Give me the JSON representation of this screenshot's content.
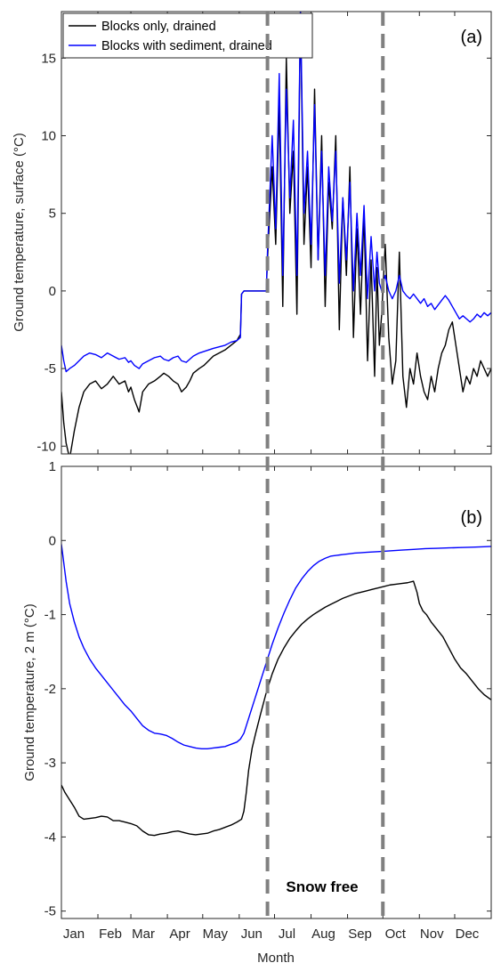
{
  "chart_data": [
    {
      "type": "line",
      "panel_label": "(a)",
      "ylabel": "Ground temperature, surface (°C)",
      "ylim": [
        -10.5,
        18
      ],
      "yticks": [
        -10,
        -5,
        0,
        5,
        10,
        15
      ],
      "xlim": [
        1,
        366
      ],
      "legend": {
        "placement": "top-left",
        "entries": [
          "Blocks only, drained",
          "Blocks with sediment, drained"
        ]
      },
      "series": [
        {
          "name": "Blocks only, drained",
          "color": "#000000",
          "x": [
            1,
            3,
            5,
            8,
            12,
            16,
            20,
            25,
            30,
            35,
            40,
            45,
            50,
            55,
            58,
            60,
            63,
            67,
            70,
            75,
            80,
            85,
            88,
            92,
            96,
            100,
            103,
            107,
            110,
            113,
            118,
            122,
            126,
            130,
            135,
            140,
            145,
            150,
            153,
            154,
            156,
            165,
            175,
            176,
            180,
            183,
            186,
            189,
            192,
            195,
            198,
            201,
            204,
            207,
            210,
            213,
            216,
            219,
            222,
            225,
            228,
            231,
            234,
            237,
            240,
            243,
            246,
            249,
            252,
            255,
            258,
            261,
            264,
            267,
            269,
            271,
            273,
            276,
            279,
            282,
            285,
            288,
            291,
            294,
            297,
            300,
            303,
            306,
            309,
            312,
            315,
            318,
            321,
            324,
            327,
            330,
            333,
            336,
            339,
            342,
            345,
            348,
            351,
            354,
            357,
            360,
            363,
            366
          ],
          "y": [
            -6.5,
            -8.5,
            -9.8,
            -10.8,
            -9.0,
            -7.5,
            -6.5,
            -6.0,
            -5.8,
            -6.3,
            -6.0,
            -5.5,
            -6.0,
            -5.8,
            -6.5,
            -6.2,
            -7.0,
            -7.8,
            -6.5,
            -6.0,
            -5.8,
            -5.5,
            -5.3,
            -5.5,
            -5.8,
            -6.0,
            -6.5,
            -6.2,
            -5.8,
            -5.3,
            -5.0,
            -4.8,
            -4.5,
            -4.2,
            -4.0,
            -3.8,
            -3.5,
            -3.2,
            -2.8,
            -0.2,
            0.0,
            0.0,
            0.0,
            2.0,
            8.0,
            3.0,
            12.0,
            -1.0,
            15.0,
            5.0,
            9.0,
            -1.5,
            18.0,
            3.0,
            8.0,
            1.5,
            13.0,
            2.0,
            10.0,
            -1.0,
            7.0,
            4.0,
            10.0,
            -2.5,
            6.0,
            1.0,
            8.0,
            -3.0,
            4.0,
            -1.5,
            5.0,
            -4.5,
            2.0,
            -5.5,
            1.5,
            -3.5,
            -1.5,
            3.0,
            -3.0,
            -6.0,
            -4.5,
            2.5,
            -5.5,
            -7.5,
            -5.0,
            -6.0,
            -4.0,
            -5.5,
            -6.5,
            -7.0,
            -5.5,
            -6.5,
            -5.0,
            -4.0,
            -3.5,
            -2.5,
            -2.0,
            -3.5,
            -5.0,
            -6.5,
            -5.5,
            -6.0,
            -5.0,
            -5.5,
            -4.5,
            -5.0,
            -5.5,
            -5.0
          ]
        },
        {
          "name": "Blocks with sediment, drained",
          "color": "#0000FF",
          "x": [
            1,
            3,
            5,
            8,
            12,
            16,
            20,
            25,
            30,
            35,
            40,
            45,
            50,
            55,
            58,
            60,
            63,
            67,
            70,
            75,
            80,
            85,
            88,
            92,
            96,
            100,
            103,
            107,
            110,
            113,
            118,
            122,
            126,
            130,
            135,
            140,
            145,
            150,
            153,
            154,
            156,
            165,
            175,
            176,
            180,
            183,
            186,
            189,
            192,
            195,
            198,
            201,
            204,
            207,
            210,
            213,
            216,
            219,
            222,
            225,
            228,
            231,
            234,
            237,
            240,
            243,
            246,
            249,
            252,
            255,
            258,
            261,
            264,
            267,
            269,
            271,
            273,
            276,
            279,
            282,
            285,
            288,
            291,
            294,
            297,
            300,
            303,
            306,
            309,
            312,
            315,
            318,
            321,
            324,
            327,
            330,
            333,
            336,
            339,
            342,
            345,
            348,
            351,
            354,
            357,
            360,
            363,
            366
          ],
          "y": [
            -3.5,
            -4.5,
            -5.2,
            -5.0,
            -4.8,
            -4.5,
            -4.2,
            -4.0,
            -4.1,
            -4.3,
            -4.0,
            -4.2,
            -4.4,
            -4.3,
            -4.6,
            -4.5,
            -4.8,
            -5.0,
            -4.7,
            -4.5,
            -4.3,
            -4.2,
            -4.4,
            -4.5,
            -4.3,
            -4.2,
            -4.5,
            -4.6,
            -4.4,
            -4.2,
            -4.0,
            -3.9,
            -3.8,
            -3.7,
            -3.6,
            -3.5,
            -3.3,
            -3.2,
            -3.0,
            -0.2,
            0.0,
            0.0,
            0.0,
            2.5,
            10.0,
            4.0,
            14.0,
            1.0,
            13.0,
            6.0,
            11.0,
            1.0,
            18.0,
            5.0,
            9.0,
            3.0,
            12.0,
            2.0,
            9.0,
            1.0,
            8.0,
            4.5,
            9.0,
            0.5,
            6.0,
            2.0,
            7.0,
            0.0,
            5.0,
            1.0,
            5.5,
            -0.5,
            3.5,
            0.0,
            2.5,
            0.5,
            0.0,
            1.0,
            0.0,
            -0.5,
            0.0,
            1.0,
            0.0,
            -0.3,
            -0.5,
            -0.2,
            -0.5,
            -0.8,
            -0.5,
            -1.0,
            -0.8,
            -1.2,
            -0.9,
            -0.6,
            -0.3,
            -0.6,
            -1.0,
            -1.4,
            -1.8,
            -1.6,
            -1.8,
            -2.0,
            -1.8,
            -1.5,
            -1.7,
            -1.4,
            -1.6,
            -1.4
          ]
        }
      ],
      "vlines": [
        {
          "x": 176,
          "style": "dashed",
          "color": "#808080"
        },
        {
          "x": 274,
          "style": "dashed",
          "color": "#808080"
        }
      ]
    },
    {
      "type": "line",
      "panel_label": "(b)",
      "ylabel": "Ground temperature, 2 m (°C)",
      "xlabel": "Month",
      "ylim": [
        -5.1,
        1
      ],
      "yticks": [
        -5,
        -4,
        -3,
        -2,
        -1,
        0,
        1
      ],
      "xlim": [
        1,
        366
      ],
      "xticks": [
        {
          "x": 1,
          "label": "Jan"
        },
        {
          "x": 32,
          "label": "Feb"
        },
        {
          "x": 60,
          "label": "Mar"
        },
        {
          "x": 91,
          "label": "Apr"
        },
        {
          "x": 121,
          "label": "May"
        },
        {
          "x": 152,
          "label": "Jun"
        },
        {
          "x": 182,
          "label": "Jul"
        },
        {
          "x": 213,
          "label": "Aug"
        },
        {
          "x": 244,
          "label": "Sep"
        },
        {
          "x": 274,
          "label": "Oct"
        },
        {
          "x": 305,
          "label": "Nov"
        },
        {
          "x": 335,
          "label": "Dec"
        }
      ],
      "annotation": "Snow free",
      "series": [
        {
          "name": "Blocks only, drained",
          "color": "#000000",
          "x": [
            1,
            4,
            8,
            12,
            16,
            20,
            25,
            30,
            35,
            40,
            45,
            50,
            55,
            60,
            65,
            70,
            75,
            80,
            85,
            90,
            95,
            100,
            105,
            110,
            115,
            120,
            125,
            130,
            135,
            140,
            145,
            150,
            154,
            156,
            158,
            160,
            163,
            166,
            170,
            175,
            180,
            185,
            190,
            195,
            200,
            205,
            210,
            215,
            220,
            225,
            230,
            235,
            240,
            245,
            250,
            255,
            260,
            265,
            270,
            275,
            280,
            285,
            290,
            295,
            300,
            303,
            305,
            308,
            311,
            315,
            320,
            325,
            330,
            335,
            340,
            345,
            350,
            355,
            360,
            366
          ],
          "y": [
            -3.3,
            -3.4,
            -3.5,
            -3.6,
            -3.72,
            -3.76,
            -3.75,
            -3.74,
            -3.72,
            -3.73,
            -3.78,
            -3.78,
            -3.8,
            -3.82,
            -3.85,
            -3.92,
            -3.97,
            -3.98,
            -3.96,
            -3.95,
            -3.93,
            -3.92,
            -3.94,
            -3.96,
            -3.97,
            -3.96,
            -3.95,
            -3.92,
            -3.9,
            -3.87,
            -3.84,
            -3.8,
            -3.76,
            -3.65,
            -3.4,
            -3.1,
            -2.8,
            -2.6,
            -2.35,
            -2.05,
            -1.8,
            -1.6,
            -1.45,
            -1.32,
            -1.22,
            -1.13,
            -1.06,
            -1.0,
            -0.95,
            -0.9,
            -0.86,
            -0.82,
            -0.78,
            -0.75,
            -0.72,
            -0.7,
            -0.68,
            -0.66,
            -0.64,
            -0.62,
            -0.6,
            -0.59,
            -0.58,
            -0.57,
            -0.55,
            -0.7,
            -0.85,
            -0.95,
            -1.0,
            -1.1,
            -1.2,
            -1.3,
            -1.45,
            -1.6,
            -1.72,
            -1.8,
            -1.9,
            -2.0,
            -2.08,
            -2.15
          ]
        },
        {
          "name": "Blocks with sediment, drained",
          "color": "#0000FF",
          "x": [
            1,
            3,
            5,
            8,
            12,
            16,
            20,
            25,
            30,
            35,
            40,
            45,
            50,
            55,
            60,
            65,
            70,
            75,
            80,
            85,
            90,
            95,
            100,
            105,
            110,
            115,
            120,
            125,
            130,
            135,
            140,
            145,
            150,
            153,
            156,
            160,
            165,
            170,
            175,
            180,
            185,
            190,
            195,
            200,
            205,
            210,
            215,
            220,
            225,
            230,
            235,
            240,
            245,
            250,
            255,
            260,
            270,
            280,
            290,
            300,
            310,
            320,
            330,
            340,
            350,
            360,
            366
          ],
          "y": [
            -0.05,
            -0.3,
            -0.55,
            -0.85,
            -1.1,
            -1.3,
            -1.45,
            -1.6,
            -1.72,
            -1.82,
            -1.92,
            -2.02,
            -2.12,
            -2.22,
            -2.3,
            -2.4,
            -2.5,
            -2.56,
            -2.6,
            -2.61,
            -2.63,
            -2.67,
            -2.72,
            -2.76,
            -2.78,
            -2.8,
            -2.81,
            -2.81,
            -2.8,
            -2.79,
            -2.78,
            -2.75,
            -2.72,
            -2.68,
            -2.6,
            -2.4,
            -2.15,
            -1.9,
            -1.65,
            -1.4,
            -1.18,
            -0.98,
            -0.8,
            -0.64,
            -0.52,
            -0.42,
            -0.34,
            -0.28,
            -0.24,
            -0.21,
            -0.2,
            -0.19,
            -0.18,
            -0.17,
            -0.165,
            -0.16,
            -0.15,
            -0.14,
            -0.13,
            -0.12,
            -0.11,
            -0.105,
            -0.1,
            -0.095,
            -0.09,
            -0.085,
            -0.08
          ]
        }
      ],
      "vlines": [
        {
          "x": 176,
          "style": "dashed",
          "color": "#808080"
        },
        {
          "x": 274,
          "style": "dashed",
          "color": "#808080"
        }
      ]
    }
  ]
}
